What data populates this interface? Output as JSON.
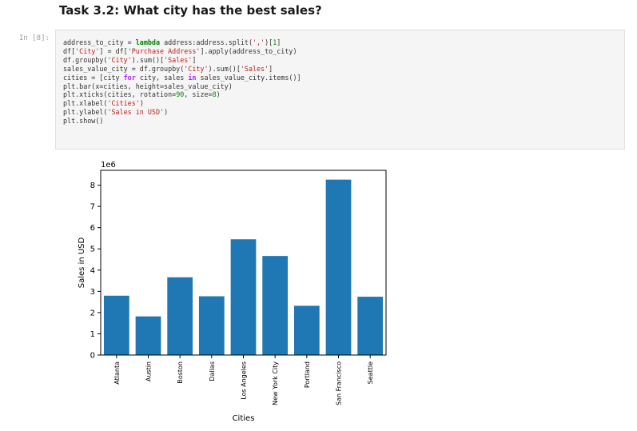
{
  "heading": "Task 3.2: What city has the best sales?",
  "cell": {
    "prompt": "In [8]:",
    "code_lines": [
      "address_to_city = lambda address:address.split(',')[1]",
      "df['City'] = df['Purchase Address'].apply(address_to_city)",
      "df.groupby('City').sum()['Sales']",
      "sales_value_city = df.groupby('City').sum()['Sales']",
      "cities = [city for city, sales in sales_value_city.items()]",
      "plt.bar(x=cities, height=sales_value_city)",
      "plt.xticks(cities, rotation=90, size=8)",
      "plt.xlabel('Cities')",
      "plt.ylabel('Sales in USD')",
      "plt.show()"
    ]
  },
  "colors": {
    "bar": "#1f77b4",
    "cell_background": "#f5f5f5"
  },
  "chart_data": {
    "type": "bar",
    "categories": [
      "Atlanta",
      "Austin",
      "Boston",
      "Dallas",
      "Los Angeles",
      "New York City",
      "Portland",
      "San Francisco",
      "Seattle"
    ],
    "values": [
      2795000,
      1820000,
      3662000,
      2768000,
      5452000,
      4665000,
      2320000,
      8262000,
      2747000
    ],
    "title": "",
    "xlabel": "Cities",
    "ylabel": "Sales in USD",
    "ylim": [
      0,
      8700000
    ],
    "yticks": [
      "0",
      "1",
      "2",
      "3",
      "4",
      "5",
      "6",
      "7",
      "8"
    ],
    "yscale_label": "1e6",
    "grid": false
  }
}
